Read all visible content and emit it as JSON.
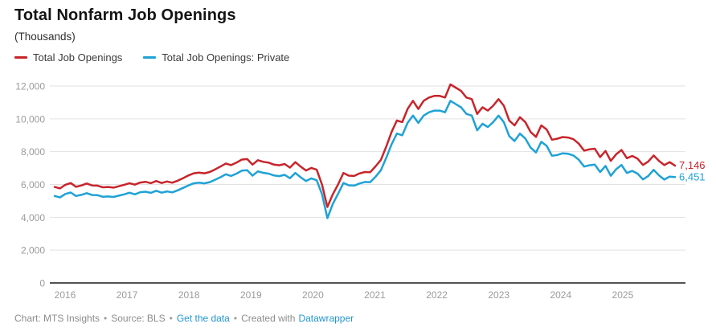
{
  "header": {
    "title": "Total Nonfarm Job Openings",
    "subtitle": "(Thousands)"
  },
  "chart_data": {
    "type": "line",
    "title": "Total Nonfarm Job Openings",
    "subtitle": "(Thousands)",
    "unit": "Thousands",
    "x_start": "2016-01",
    "x_end": "2025-09",
    "x_frequency": "monthly",
    "grid": true,
    "legend_position": "top",
    "ylim": [
      0,
      12400
    ],
    "y_ticks": [
      {
        "v": 0,
        "label": "0"
      },
      {
        "v": 2000,
        "label": "2,000"
      },
      {
        "v": 4000,
        "label": "4,000"
      },
      {
        "v": 6000,
        "label": "6,000"
      },
      {
        "v": 8000,
        "label": "8,000"
      },
      {
        "v": 10000,
        "label": "10,000"
      },
      {
        "v": 12000,
        "label": "12,000"
      }
    ],
    "x_tick_labels": [
      "2016",
      "2017",
      "2018",
      "2019",
      "2020",
      "2021",
      "2022",
      "2023",
      "2024",
      "2025"
    ],
    "series": [
      {
        "name": "Total Job Openings",
        "color": "#c8252b",
        "end_label": "7,146",
        "values": [
          5850,
          5760,
          5980,
          6090,
          5860,
          5940,
          6060,
          5940,
          5930,
          5830,
          5850,
          5810,
          5890,
          5980,
          6080,
          5990,
          6120,
          6160,
          6080,
          6210,
          6090,
          6180,
          6110,
          6230,
          6380,
          6550,
          6680,
          6720,
          6680,
          6760,
          6920,
          7090,
          7280,
          7180,
          7330,
          7520,
          7550,
          7210,
          7480,
          7380,
          7330,
          7210,
          7170,
          7250,
          7030,
          7360,
          7090,
          6850,
          7010,
          6900,
          5980,
          4630,
          5400,
          6000,
          6700,
          6540,
          6520,
          6670,
          6760,
          6750,
          7100,
          7500,
          8300,
          9200,
          9900,
          9800,
          10600,
          11100,
          10600,
          11100,
          11300,
          11400,
          11400,
          11300,
          12100,
          11900,
          11700,
          11300,
          11200,
          10300,
          10700,
          10500,
          10800,
          11200,
          10800,
          9900,
          9600,
          10100,
          9800,
          9200,
          8900,
          9600,
          9350,
          8730,
          8790,
          8890,
          8860,
          8760,
          8490,
          8060,
          8140,
          8180,
          7670,
          8040,
          7440,
          7840,
          8100,
          7600,
          7740,
          7570,
          7190,
          7400,
          7770,
          7440,
          7180,
          7360,
          7146
        ]
      },
      {
        "name": "Total Job Openings: Private",
        "color": "#1fa2d6",
        "end_label": "6,451",
        "values": [
          5300,
          5210,
          5420,
          5510,
          5300,
          5370,
          5470,
          5360,
          5350,
          5250,
          5270,
          5240,
          5320,
          5400,
          5500,
          5400,
          5530,
          5560,
          5490,
          5620,
          5500,
          5580,
          5520,
          5640,
          5790,
          5940,
          6070,
          6110,
          6070,
          6140,
          6290,
          6440,
          6620,
          6520,
          6660,
          6840,
          6870,
          6540,
          6800,
          6710,
          6660,
          6550,
          6510,
          6590,
          6380,
          6700,
          6440,
          6210,
          6370,
          6260,
          5400,
          3950,
          4810,
          5430,
          6090,
          5950,
          5930,
          6060,
          6150,
          6140,
          6470,
          6870,
          7620,
          8450,
          9100,
          9000,
          9750,
          10200,
          9750,
          10200,
          10400,
          10500,
          10500,
          10400,
          11100,
          10900,
          10700,
          10300,
          10200,
          9300,
          9700,
          9500,
          9800,
          10200,
          9800,
          8950,
          8650,
          9100,
          8800,
          8250,
          7950,
          8600,
          8350,
          7750,
          7800,
          7900,
          7870,
          7770,
          7510,
          7090,
          7170,
          7210,
          6760,
          7130,
          6530,
          6930,
          7190,
          6700,
          6830,
          6660,
          6310,
          6520,
          6890,
          6560,
          6300,
          6480,
          6451
        ]
      }
    ]
  },
  "footer": {
    "credit": "Chart: MTS Insights",
    "sep": "•",
    "source": "Source: BLS",
    "get_data": "Get the data",
    "created_with": "Created with",
    "datawrapper": "Datawrapper"
  },
  "colors": {
    "grid": "#e2e2e2",
    "baseline": "#1a1a1a",
    "axis_text": "#9b9b9b",
    "link": "#2296d4"
  }
}
